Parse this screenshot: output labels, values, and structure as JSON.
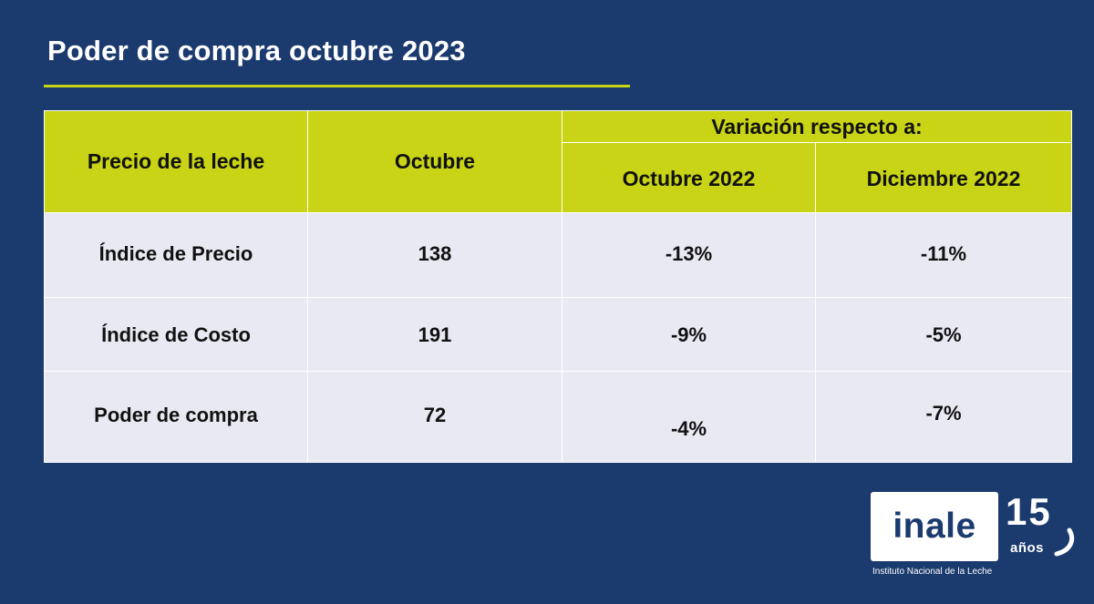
{
  "slide": {
    "title": "Poder de compra octubre 2023",
    "accent_color": "#c8d415",
    "background_color": "#1b3a6e"
  },
  "table": {
    "header": {
      "col_label": "Precio de la leche",
      "col_month": "Octubre",
      "variation_group": "Variación respecto a:",
      "variation_cols": [
        "Octubre 2022",
        "Diciembre 2022"
      ]
    },
    "rows": [
      {
        "label": "Índice de Precio",
        "value": "138",
        "var1": "-13%",
        "var2": "-11%"
      },
      {
        "label": "Índice de Costo",
        "value": "191",
        "var1": "-9%",
        "var2": "-5%"
      },
      {
        "label": "Poder de compra",
        "value": "72",
        "var1": "-4%",
        "var2": "-7%"
      }
    ]
  },
  "logo": {
    "wordmark": "inale",
    "anniversary_number": "15",
    "anniversary_word": "años",
    "caption": "Instituto Nacional de la Leche"
  }
}
